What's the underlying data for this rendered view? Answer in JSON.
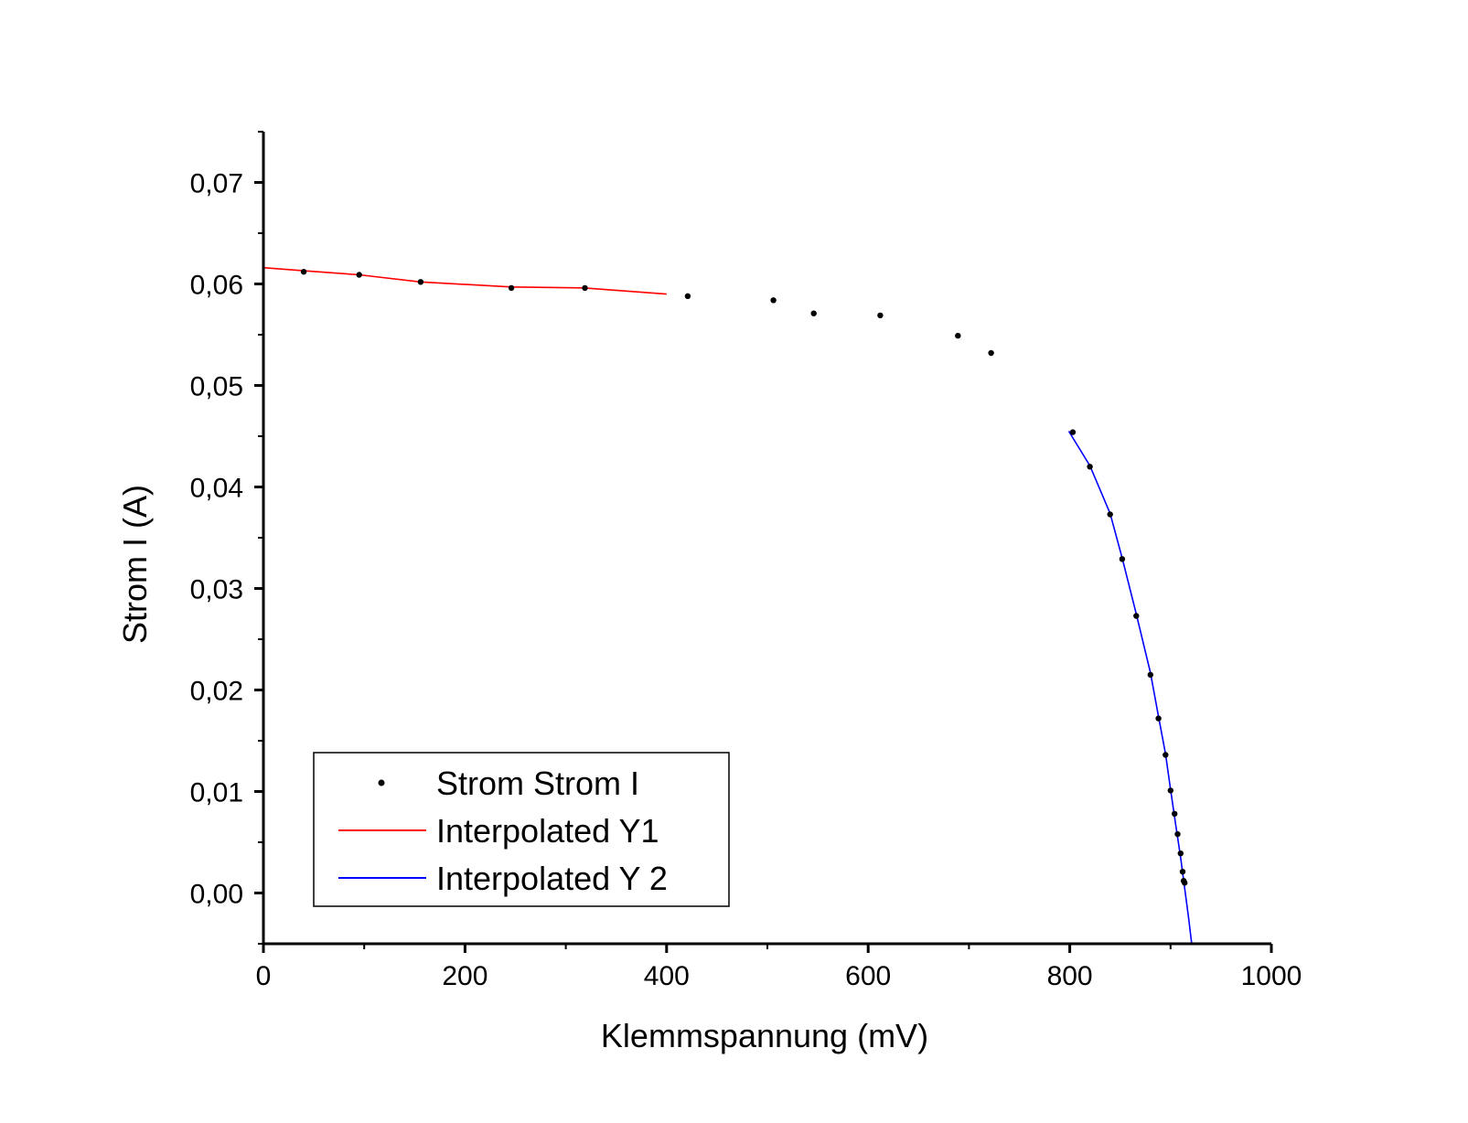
{
  "chart_data": {
    "type": "scatter",
    "title": "",
    "xlabel": "Klemmspannung (mV)",
    "ylabel": "Strom I (A)",
    "xlim": [
      0,
      1000
    ],
    "ylim": [
      -0.005,
      0.075
    ],
    "x_ticks": [
      {
        "value": 0,
        "label": "0"
      },
      {
        "value": 200,
        "label": "200"
      },
      {
        "value": 400,
        "label": "400"
      },
      {
        "value": 600,
        "label": "600"
      },
      {
        "value": 800,
        "label": "800"
      },
      {
        "value": 1000,
        "label": "1000"
      }
    ],
    "y_ticks": [
      {
        "value": 0.0,
        "label": "0,00"
      },
      {
        "value": 0.01,
        "label": "0,01"
      },
      {
        "value": 0.02,
        "label": "0,02"
      },
      {
        "value": 0.03,
        "label": "0,03"
      },
      {
        "value": 0.04,
        "label": "0,04"
      },
      {
        "value": 0.05,
        "label": "0,05"
      },
      {
        "value": 0.06,
        "label": "0,06"
      },
      {
        "value": 0.07,
        "label": "0,07"
      }
    ],
    "grid": false,
    "legend_position": "bottom-left",
    "series": [
      {
        "name": "Strom Strom I",
        "kind": "scatter",
        "color": "#000000",
        "points": [
          [
            40,
            0.0612
          ],
          [
            95,
            0.0609
          ],
          [
            156,
            0.0602
          ],
          [
            246,
            0.0596
          ],
          [
            319,
            0.0596
          ],
          [
            421,
            0.0588
          ],
          [
            506,
            0.0584
          ],
          [
            546,
            0.0571
          ],
          [
            612,
            0.0569
          ],
          [
            689,
            0.0549
          ],
          [
            722,
            0.0532
          ],
          [
            803,
            0.0454
          ],
          [
            820,
            0.042
          ],
          [
            840,
            0.0373
          ],
          [
            852,
            0.0329
          ],
          [
            866,
            0.0273
          ],
          [
            880,
            0.0215
          ],
          [
            888,
            0.0172
          ],
          [
            895,
            0.0136
          ],
          [
            900,
            0.0101
          ],
          [
            904,
            0.0078
          ],
          [
            907,
            0.0058
          ],
          [
            910,
            0.0039
          ],
          [
            912,
            0.0021
          ],
          [
            913,
            0.0012
          ],
          [
            914,
            0.001
          ]
        ]
      },
      {
        "name": "Interpolated Y1",
        "kind": "line",
        "color": "#ff0000",
        "points": [
          [
            0,
            0.0616
          ],
          [
            40,
            0.0613
          ],
          [
            95,
            0.0609
          ],
          [
            156,
            0.0602
          ],
          [
            246,
            0.0597
          ],
          [
            319,
            0.0596
          ],
          [
            400,
            0.059
          ]
        ]
      },
      {
        "name": "Interpolated Y 2",
        "kind": "line",
        "color": "#0000ff",
        "points": [
          [
            799,
            0.0455
          ],
          [
            820,
            0.0421
          ],
          [
            840,
            0.0374
          ],
          [
            852,
            0.033
          ],
          [
            866,
            0.0275
          ],
          [
            880,
            0.0217
          ],
          [
            888,
            0.0174
          ],
          [
            895,
            0.0137
          ],
          [
            900,
            0.0102
          ],
          [
            905,
            0.0068
          ],
          [
            910,
            0.0035
          ],
          [
            914,
            0.0005
          ],
          [
            918,
            -0.0025
          ],
          [
            921,
            -0.005
          ]
        ]
      }
    ]
  }
}
